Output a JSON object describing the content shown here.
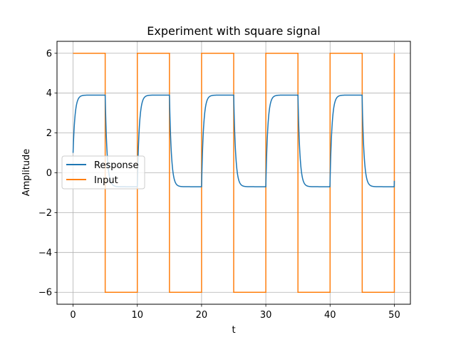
{
  "chart_data": {
    "type": "line",
    "title": "Experiment with square signal",
    "xlabel": "t",
    "ylabel": "Amplitude",
    "xlim": [
      -2.5,
      52.5
    ],
    "ylim": [
      -6.6,
      6.6
    ],
    "xticks": [
      "0",
      "10",
      "20",
      "30",
      "40",
      "50"
    ],
    "yticks": [
      "−6",
      "−4",
      "−2",
      "0",
      "2",
      "4",
      "6"
    ],
    "grid": true,
    "legend_position": "center-left",
    "series": [
      {
        "name": "Response",
        "color": "#1f77b4",
        "form": "first-order step response to square input",
        "initial": 1.0,
        "high": 3.9,
        "low": -0.7,
        "time_constant": 0.3
      },
      {
        "name": "Input",
        "color": "#ff7f0e",
        "form": "square wave",
        "high": 6,
        "low": -6,
        "period": 10,
        "duty": 0.5,
        "t_start": 0,
        "t_end": 50
      }
    ]
  }
}
